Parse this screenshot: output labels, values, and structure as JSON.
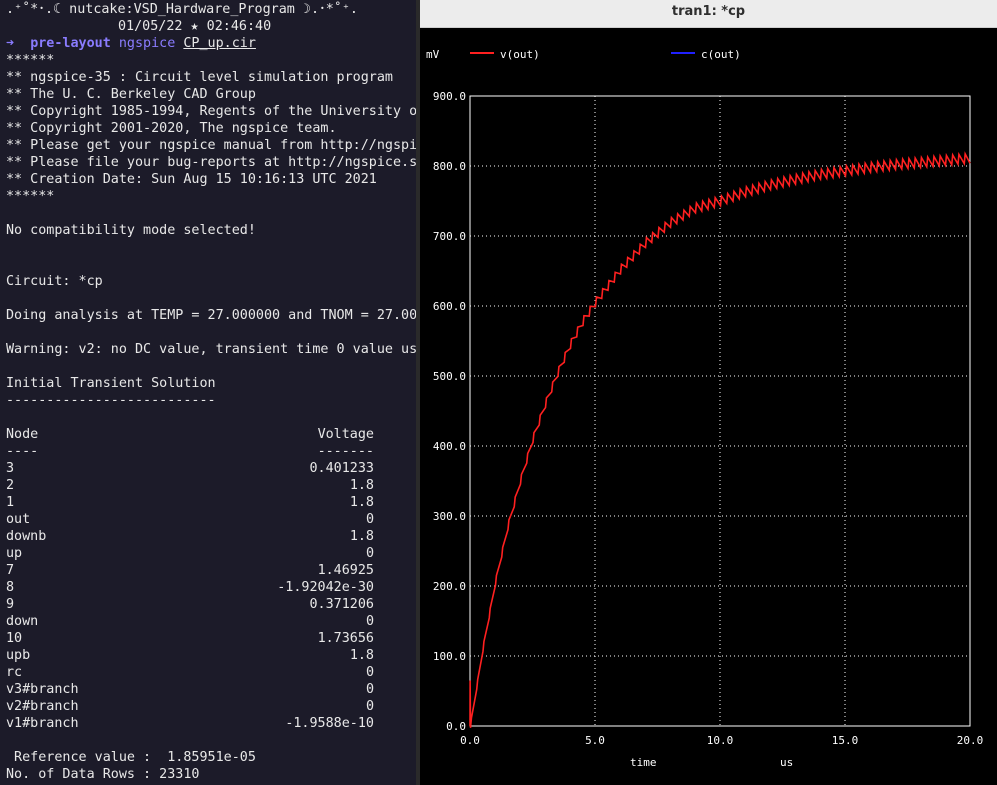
{
  "terminal": {
    "banner_line1": ".⁺˚*･.☾ nutcake:VSD_Hardware_Program ☽.･*˚⁺.",
    "banner_line2": "01/05/22 ★ 02:46:40",
    "prompt_arrow": "➜",
    "prompt_dir": "pre-layout",
    "prompt_cmd": "ngspice",
    "prompt_file": "CP_up.cir",
    "stars1": "******",
    "info_lines": [
      "** ngspice-35 : Circuit level simulation program",
      "** The U. C. Berkeley CAD Group",
      "** Copyright 1985-1994, Regents of the University o",
      "** Copyright 2001-2020, The ngspice team.",
      "** Please get your ngspice manual from http://ngspic",
      "** Please file your bug-reports at http://ngspice.s",
      "** Creation Date: Sun Aug 15 10:16:13 UTC 2021"
    ],
    "stars2": "******",
    "compat": "No compatibility mode selected!",
    "circuit": "Circuit: *cp",
    "doing": "Doing analysis at TEMP = 27.000000 and TNOM = 27.000",
    "warning": "Warning: v2: no DC value, transient time 0 value use",
    "initial": "Initial Transient Solution",
    "underline": "--------------------------",
    "col_node": "Node",
    "col_voltage": "Voltage",
    "col_node_dash": "----",
    "col_voltage_dash": "-------",
    "rows": [
      {
        "node": "3",
        "value": "0.401233"
      },
      {
        "node": "2",
        "value": "1.8"
      },
      {
        "node": "1",
        "value": "1.8"
      },
      {
        "node": "out",
        "value": "0"
      },
      {
        "node": "downb",
        "value": "1.8"
      },
      {
        "node": "up",
        "value": "0"
      },
      {
        "node": "7",
        "value": "1.46925"
      },
      {
        "node": "8",
        "value": "-1.92042e-30"
      },
      {
        "node": "9",
        "value": "0.371206"
      },
      {
        "node": "down",
        "value": "0"
      },
      {
        "node": "10",
        "value": "1.73656"
      },
      {
        "node": "upb",
        "value": "1.8"
      },
      {
        "node": "rc",
        "value": "0"
      },
      {
        "node": "v3#branch",
        "value": "0"
      },
      {
        "node": "v2#branch",
        "value": "0"
      },
      {
        "node": "v1#branch",
        "value": "-1.9588e-10"
      }
    ],
    "reference": " Reference value :  1.85951e-05",
    "data_rows": "No. of Data Rows : 23310"
  },
  "plot_window": {
    "title": "tran1: *cp"
  },
  "chart_data": {
    "type": "line",
    "ylabel": "mV",
    "xlabel": "time",
    "xunit": "us",
    "xlim": [
      0,
      20
    ],
    "ylim": [
      0,
      900
    ],
    "x_ticks": [
      "0.0",
      "5.0",
      "10.0",
      "15.0",
      "20.0"
    ],
    "y_ticks": [
      "0.0",
      "100.0",
      "200.0",
      "300.0",
      "400.0",
      "500.0",
      "600.0",
      "700.0",
      "800.0",
      "900.0"
    ],
    "grid": true,
    "legend_placement": "top",
    "series": [
      {
        "name": "v(out)",
        "color": "#ff2020",
        "x": [
          0,
          0.5,
          1,
          1.5,
          2,
          2.5,
          3,
          3.5,
          4,
          4.5,
          5,
          6,
          7,
          8,
          9,
          10,
          11,
          12,
          13,
          14,
          15,
          16,
          17,
          18,
          19,
          20
        ],
        "y": [
          0,
          110,
          205,
          285,
          350,
          410,
          460,
          505,
          545,
          578,
          605,
          652,
          690,
          719,
          740,
          750,
          763,
          773,
          781,
          788,
          793,
          798,
          802,
          805,
          808,
          811
        ],
        "ripple_mv": 14
      },
      {
        "name": "c(out)",
        "color": "#2020ff",
        "x": [],
        "y": []
      }
    ]
  }
}
